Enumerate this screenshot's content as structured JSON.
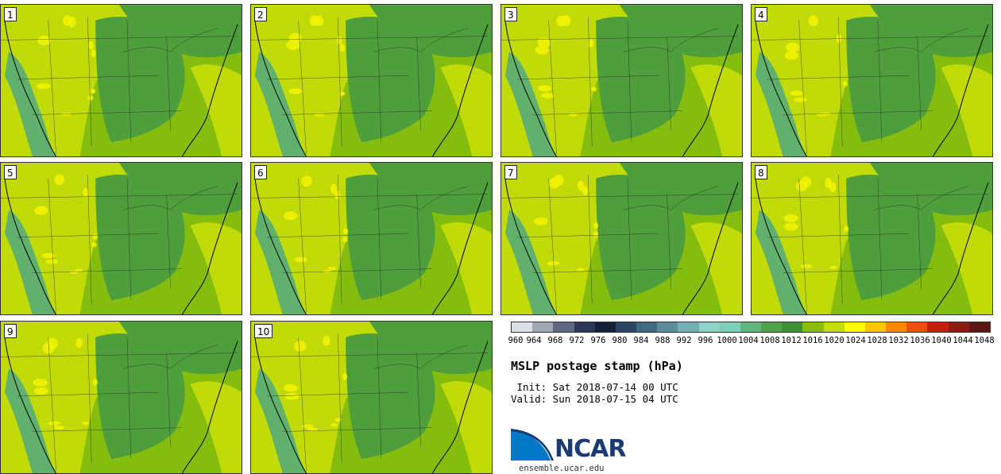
{
  "panels": [
    {
      "id": "1"
    },
    {
      "id": "2"
    },
    {
      "id": "3"
    },
    {
      "id": "4"
    },
    {
      "id": "5"
    },
    {
      "id": "6"
    },
    {
      "id": "7"
    },
    {
      "id": "8"
    },
    {
      "id": "9"
    },
    {
      "id": "10"
    }
  ],
  "legend": {
    "ticks": [
      "960",
      "964",
      "968",
      "972",
      "976",
      "980",
      "984",
      "988",
      "992",
      "996",
      "1000",
      "1004",
      "1008",
      "1012",
      "1016",
      "1020",
      "1024",
      "1028",
      "1032",
      "1036",
      "1040",
      "1044",
      "1048"
    ],
    "colors": [
      "#dcdee6",
      "#a2a7b6",
      "#5f6780",
      "#2b3855",
      "#152038",
      "#294563",
      "#3f6a80",
      "#5a8c99",
      "#74b0b3",
      "#8fd2c7",
      "#7dd0b8",
      "#64b67f",
      "#4fa04b",
      "#3f8f34",
      "#8bbf0f",
      "#c2dd08",
      "#fdfd00",
      "#fbc500",
      "#fa8800",
      "#ec4f0c",
      "#c2200c",
      "#8b1a12",
      "#5a1610"
    ]
  },
  "title": "MSLP postage stamp (hPa)",
  "init": " Init: Sat 2018-07-14 00 UTC",
  "valid": "Valid: Sun 2018-07-15 04 UTC",
  "logo": {
    "text": "NCAR",
    "colors": [
      "#0078c8",
      "#1a3b73"
    ]
  },
  "site": "ensemble.ucar.edu",
  "map_colors": {
    "low_mid": "#4f9e3c",
    "mid": "#85bd0f",
    "high": "#c0db07",
    "peak": "#f4f400",
    "trough": "#4aa587"
  }
}
